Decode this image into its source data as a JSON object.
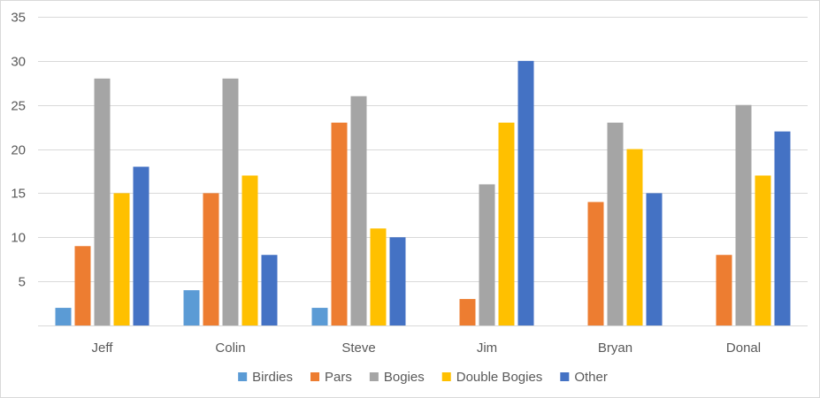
{
  "chart_data": {
    "type": "bar",
    "categories": [
      "Jeff",
      "Colin",
      "Steve",
      "Jim",
      "Bryan",
      "Donal"
    ],
    "series": [
      {
        "name": "Birdies",
        "color": "#5b9bd5",
        "values": [
          2,
          4,
          2,
          0,
          0,
          0
        ]
      },
      {
        "name": "Pars",
        "color": "#ed7d31",
        "values": [
          9,
          15,
          23,
          3,
          14,
          8
        ]
      },
      {
        "name": "Bogies",
        "color": "#a5a5a5",
        "values": [
          28,
          28,
          26,
          16,
          23,
          25
        ]
      },
      {
        "name": "Double Bogies",
        "color": "#ffc000",
        "values": [
          15,
          17,
          11,
          23,
          20,
          17
        ]
      },
      {
        "name": "Other",
        "color": "#4472c4",
        "values": [
          18,
          8,
          10,
          30,
          15,
          22
        ]
      }
    ],
    "ylim": [
      0,
      35
    ],
    "yticks": [
      "5",
      "10",
      "15",
      "20",
      "25",
      "30",
      "35"
    ],
    "grid": true,
    "legend_position": "bottom",
    "title": "",
    "xlabel": "",
    "ylabel": ""
  }
}
